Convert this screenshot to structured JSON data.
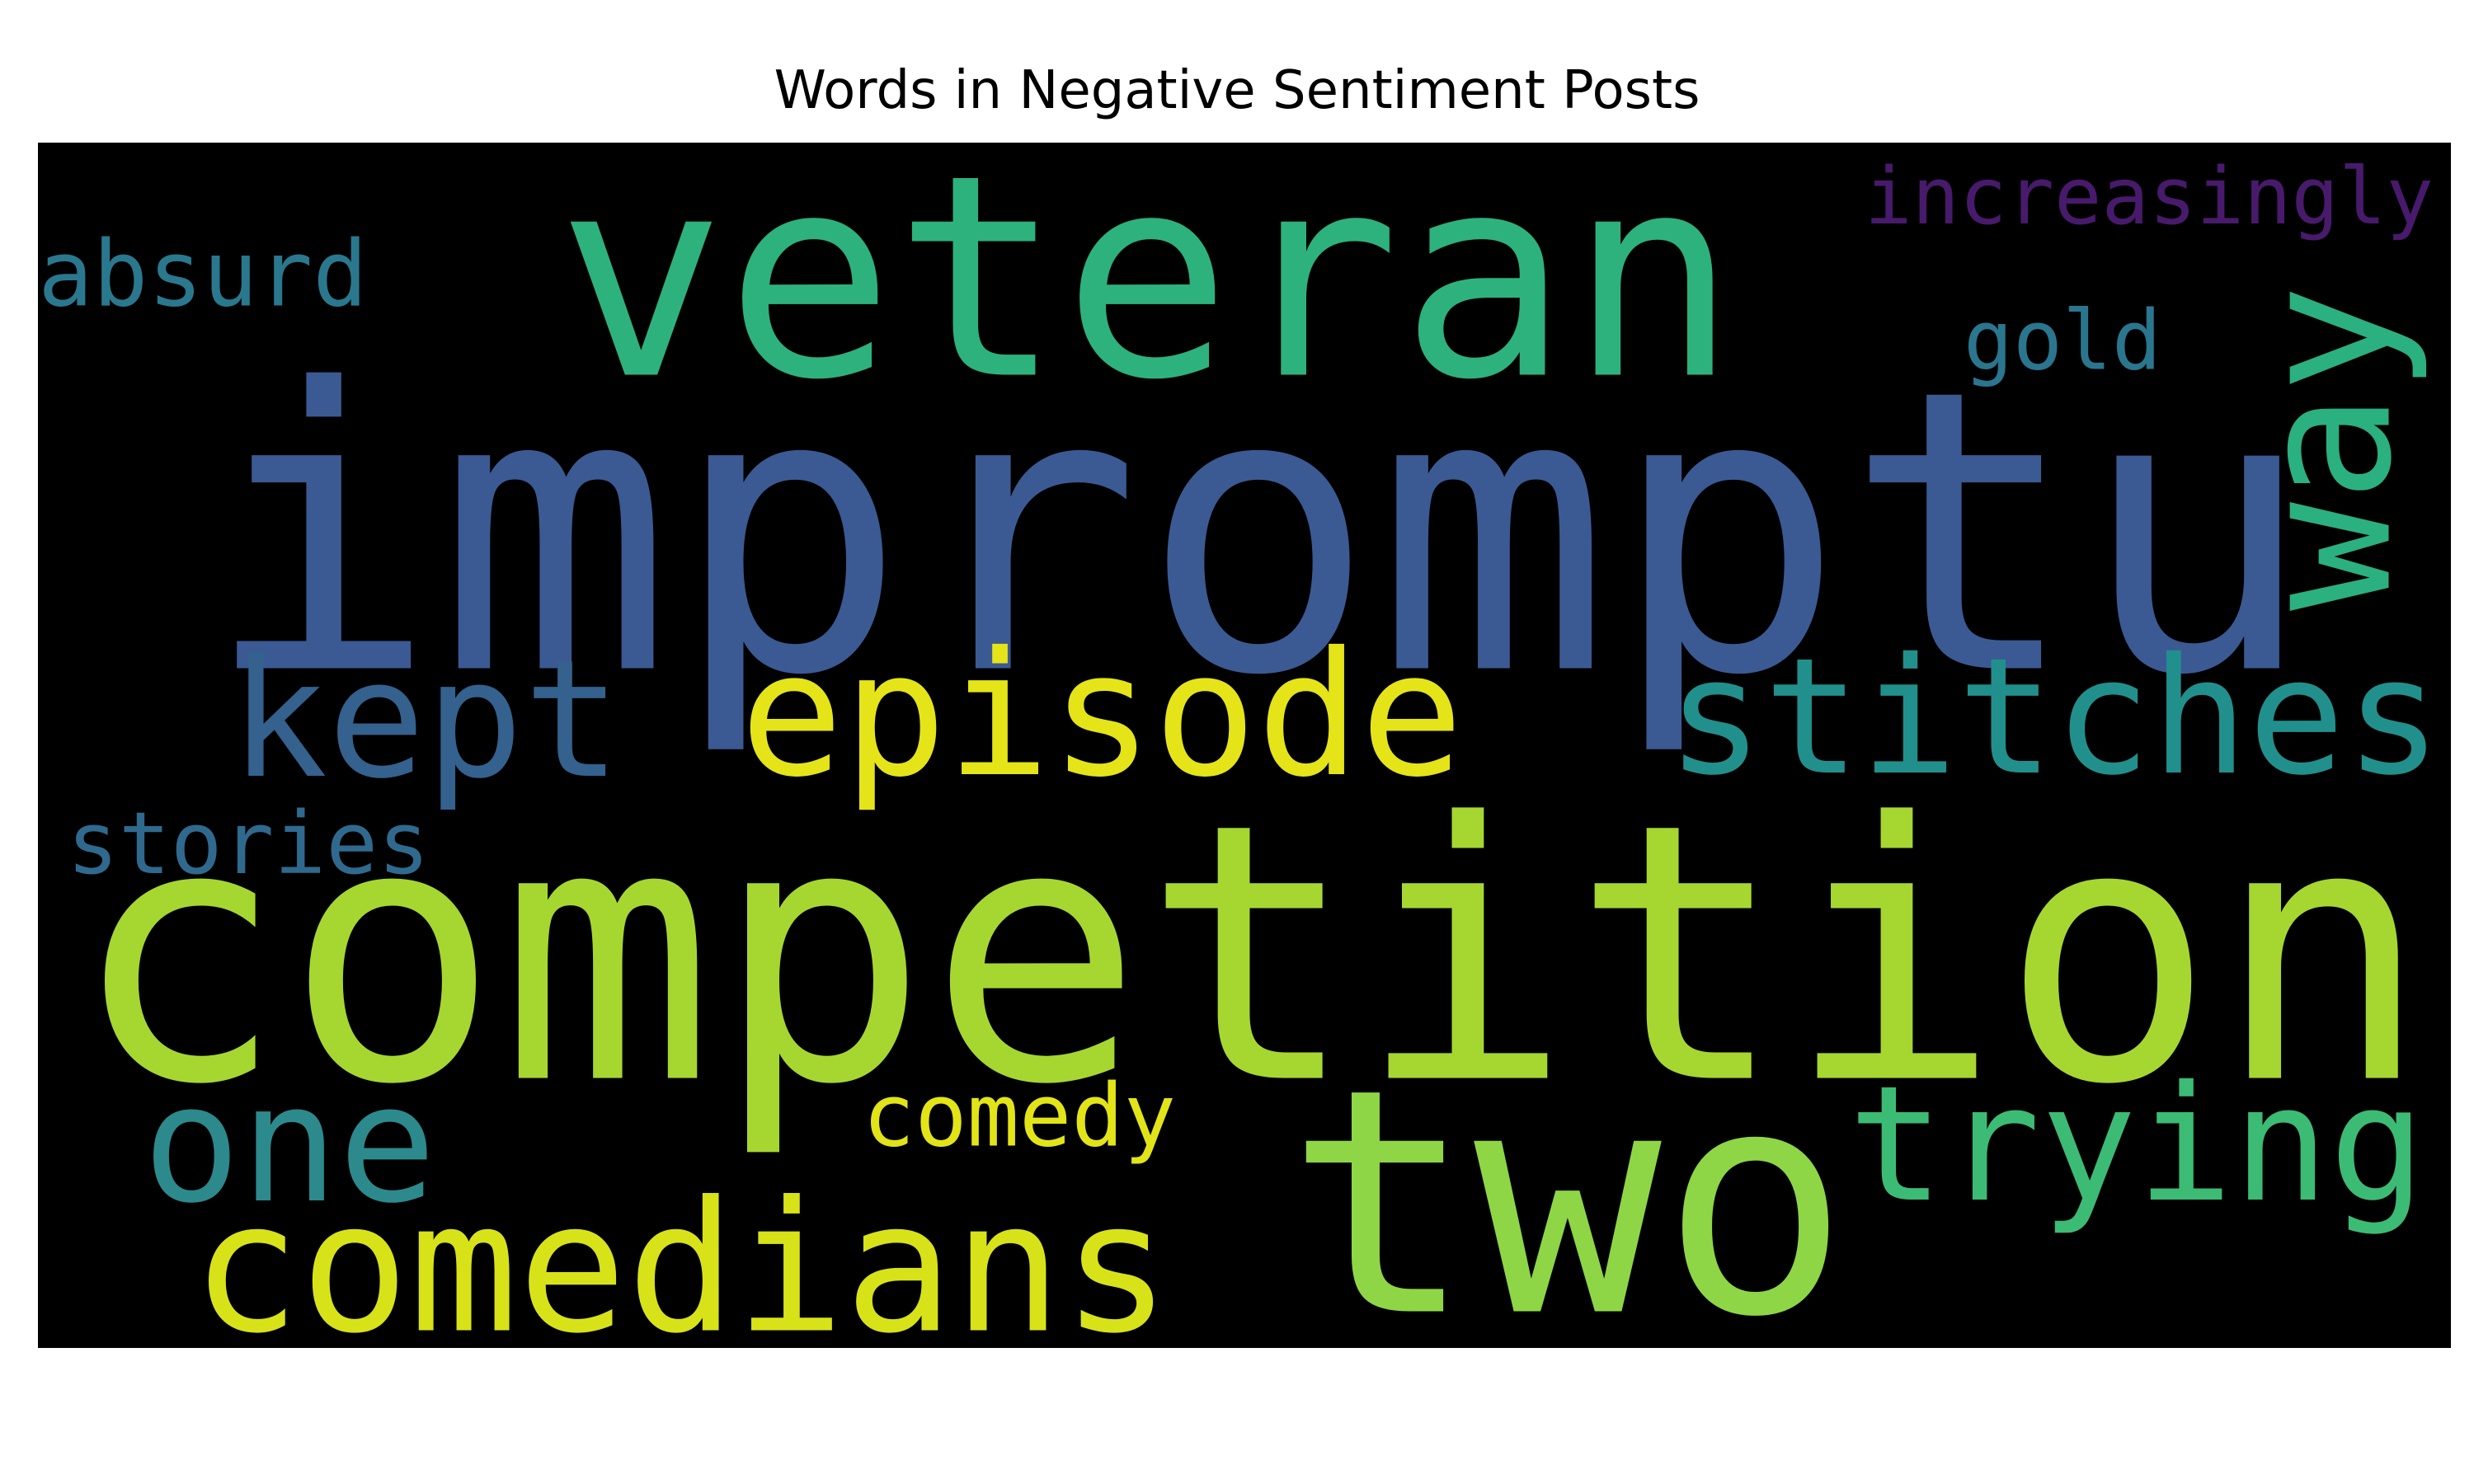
{
  "chart_data": {
    "type": "wordcloud",
    "title": "Words in Negative Sentiment Posts",
    "background": "#000000",
    "colormap": "viridis",
    "words": [
      {
        "text": "impromptu",
        "weight": 1.0,
        "color": "#3b5a93"
      },
      {
        "text": "competition",
        "weight": 0.99,
        "color": "#a6d730"
      },
      {
        "text": "veteran",
        "weight": 0.72,
        "color": "#2db27d"
      },
      {
        "text": "two",
        "weight": 0.74,
        "color": "#8ed645"
      },
      {
        "text": "comedians",
        "weight": 0.49,
        "color": "#d8e219"
      },
      {
        "text": "episode",
        "weight": 0.4,
        "color": "#e5e419"
      },
      {
        "text": "kept",
        "weight": 0.4,
        "color": "#34618d"
      },
      {
        "text": "stitches",
        "weight": 0.4,
        "color": "#21908d"
      },
      {
        "text": "one",
        "weight": 0.37,
        "color": "#2c8a8d"
      },
      {
        "text": "trying",
        "weight": 0.37,
        "color": "#3cbb75"
      },
      {
        "text": "way",
        "weight": 0.34,
        "color": "#2bb07f"
      },
      {
        "text": "absurd",
        "weight": 0.23,
        "color": "#2a788e"
      },
      {
        "text": "increasingly",
        "weight": 0.23,
        "color": "#481a6c"
      },
      {
        "text": "gold",
        "weight": 0.23,
        "color": "#2a768e"
      },
      {
        "text": "stories",
        "weight": 0.21,
        "color": "#30698e"
      },
      {
        "text": "comedy",
        "weight": 0.21,
        "color": "#e2e418"
      }
    ]
  }
}
